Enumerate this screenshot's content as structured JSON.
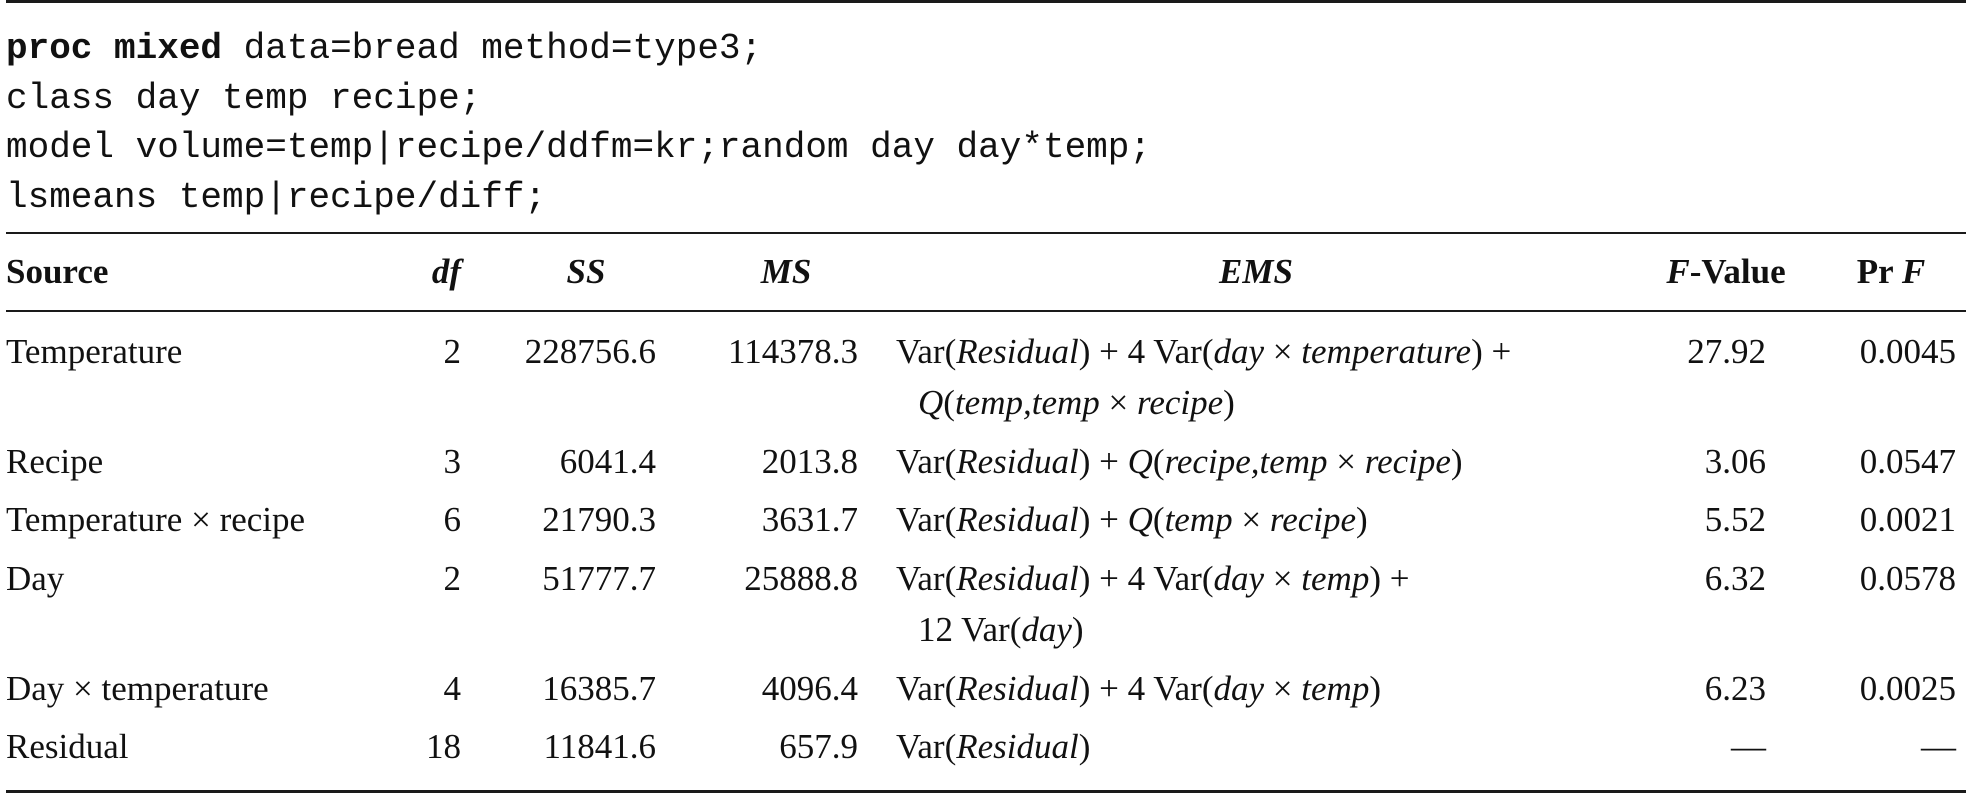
{
  "code": {
    "line1_kw": "proc mixed",
    "line1_rest": " data=bread method=type3;",
    "line2": "class day temp recipe;",
    "line3": "model volume=temp|recipe/ddfm=kr;random day day*temp;",
    "line4": "lsmeans temp|recipe/diff;"
  },
  "table": {
    "headers": {
      "source": "Source",
      "df": "df",
      "ss": "SS",
      "ms": "MS",
      "ems": "EMS",
      "f_italic": "F",
      "f_rest": "-Value",
      "pr_prefix": "Pr ",
      "pr_f": "F"
    },
    "rows": [
      {
        "source": "Temperature",
        "df": "2",
        "ss": "228756.6",
        "ms": "114378.3",
        "ems_line1": [
          {
            "t": "Var(",
            "i": false
          },
          {
            "t": "Residual",
            "i": true
          },
          {
            "t": ") + 4 Var(",
            "i": false
          },
          {
            "t": "day",
            "i": true
          },
          {
            "t": " × ",
            "i": false
          },
          {
            "t": "temperature",
            "i": true
          },
          {
            "t": ") +",
            "i": false
          }
        ],
        "ems_line2": [
          {
            "t": "Q",
            "i": true
          },
          {
            "t": "(",
            "i": false
          },
          {
            "t": "temp,temp",
            "i": true
          },
          {
            "t": " × ",
            "i": false
          },
          {
            "t": "recipe",
            "i": true
          },
          {
            "t": ")",
            "i": false
          }
        ],
        "f_value": "27.92",
        "pr_f": "0.0045"
      },
      {
        "source": "Recipe",
        "df": "3",
        "ss": "6041.4",
        "ms": "2013.8",
        "ems_line1": [
          {
            "t": "Var(",
            "i": false
          },
          {
            "t": "Residual",
            "i": true
          },
          {
            "t": ") + ",
            "i": false
          },
          {
            "t": "Q",
            "i": true
          },
          {
            "t": "(",
            "i": false
          },
          {
            "t": "recipe,temp",
            "i": true
          },
          {
            "t": " × ",
            "i": false
          },
          {
            "t": "recipe",
            "i": true
          },
          {
            "t": ")",
            "i": false
          }
        ],
        "ems_line2": [],
        "f_value": "3.06",
        "pr_f": "0.0547"
      },
      {
        "source": "Temperature × recipe",
        "df": "6",
        "ss": "21790.3",
        "ms": "3631.7",
        "ems_line1": [
          {
            "t": "Var(",
            "i": false
          },
          {
            "t": "Residual",
            "i": true
          },
          {
            "t": ") + ",
            "i": false
          },
          {
            "t": "Q",
            "i": true
          },
          {
            "t": "(",
            "i": false
          },
          {
            "t": "temp",
            "i": true
          },
          {
            "t": " × ",
            "i": false
          },
          {
            "t": "recipe",
            "i": true
          },
          {
            "t": ")",
            "i": false
          }
        ],
        "ems_line2": [],
        "f_value": "5.52",
        "pr_f": "0.0021"
      },
      {
        "source": "Day",
        "df": "2",
        "ss": "51777.7",
        "ms": "25888.8",
        "ems_line1": [
          {
            "t": "Var(",
            "i": false
          },
          {
            "t": "Residual",
            "i": true
          },
          {
            "t": ") + 4 Var(",
            "i": false
          },
          {
            "t": "day",
            "i": true
          },
          {
            "t": " × ",
            "i": false
          },
          {
            "t": "temp",
            "i": true
          },
          {
            "t": ") +",
            "i": false
          }
        ],
        "ems_line2": [
          {
            "t": "12 Var(",
            "i": false
          },
          {
            "t": "day",
            "i": true
          },
          {
            "t": ")",
            "i": false
          }
        ],
        "f_value": "6.32",
        "pr_f": "0.0578"
      },
      {
        "source": "Day × temperature",
        "df": "4",
        "ss": "16385.7",
        "ms": "4096.4",
        "ems_line1": [
          {
            "t": "Var(",
            "i": false
          },
          {
            "t": "Residual",
            "i": true
          },
          {
            "t": ") + 4 Var(",
            "i": false
          },
          {
            "t": "day",
            "i": true
          },
          {
            "t": " × ",
            "i": false
          },
          {
            "t": "temp",
            "i": true
          },
          {
            "t": ")",
            "i": false
          }
        ],
        "ems_line2": [],
        "f_value": "6.23",
        "pr_f": "0.0025"
      },
      {
        "source": "Residual",
        "df": "18",
        "ss": "11841.6",
        "ms": "657.9",
        "ems_line1": [
          {
            "t": "Var(",
            "i": false
          },
          {
            "t": "Residual",
            "i": true
          },
          {
            "t": ")",
            "i": false
          }
        ],
        "ems_line2": [],
        "f_value": "—",
        "pr_f": "—"
      }
    ]
  }
}
